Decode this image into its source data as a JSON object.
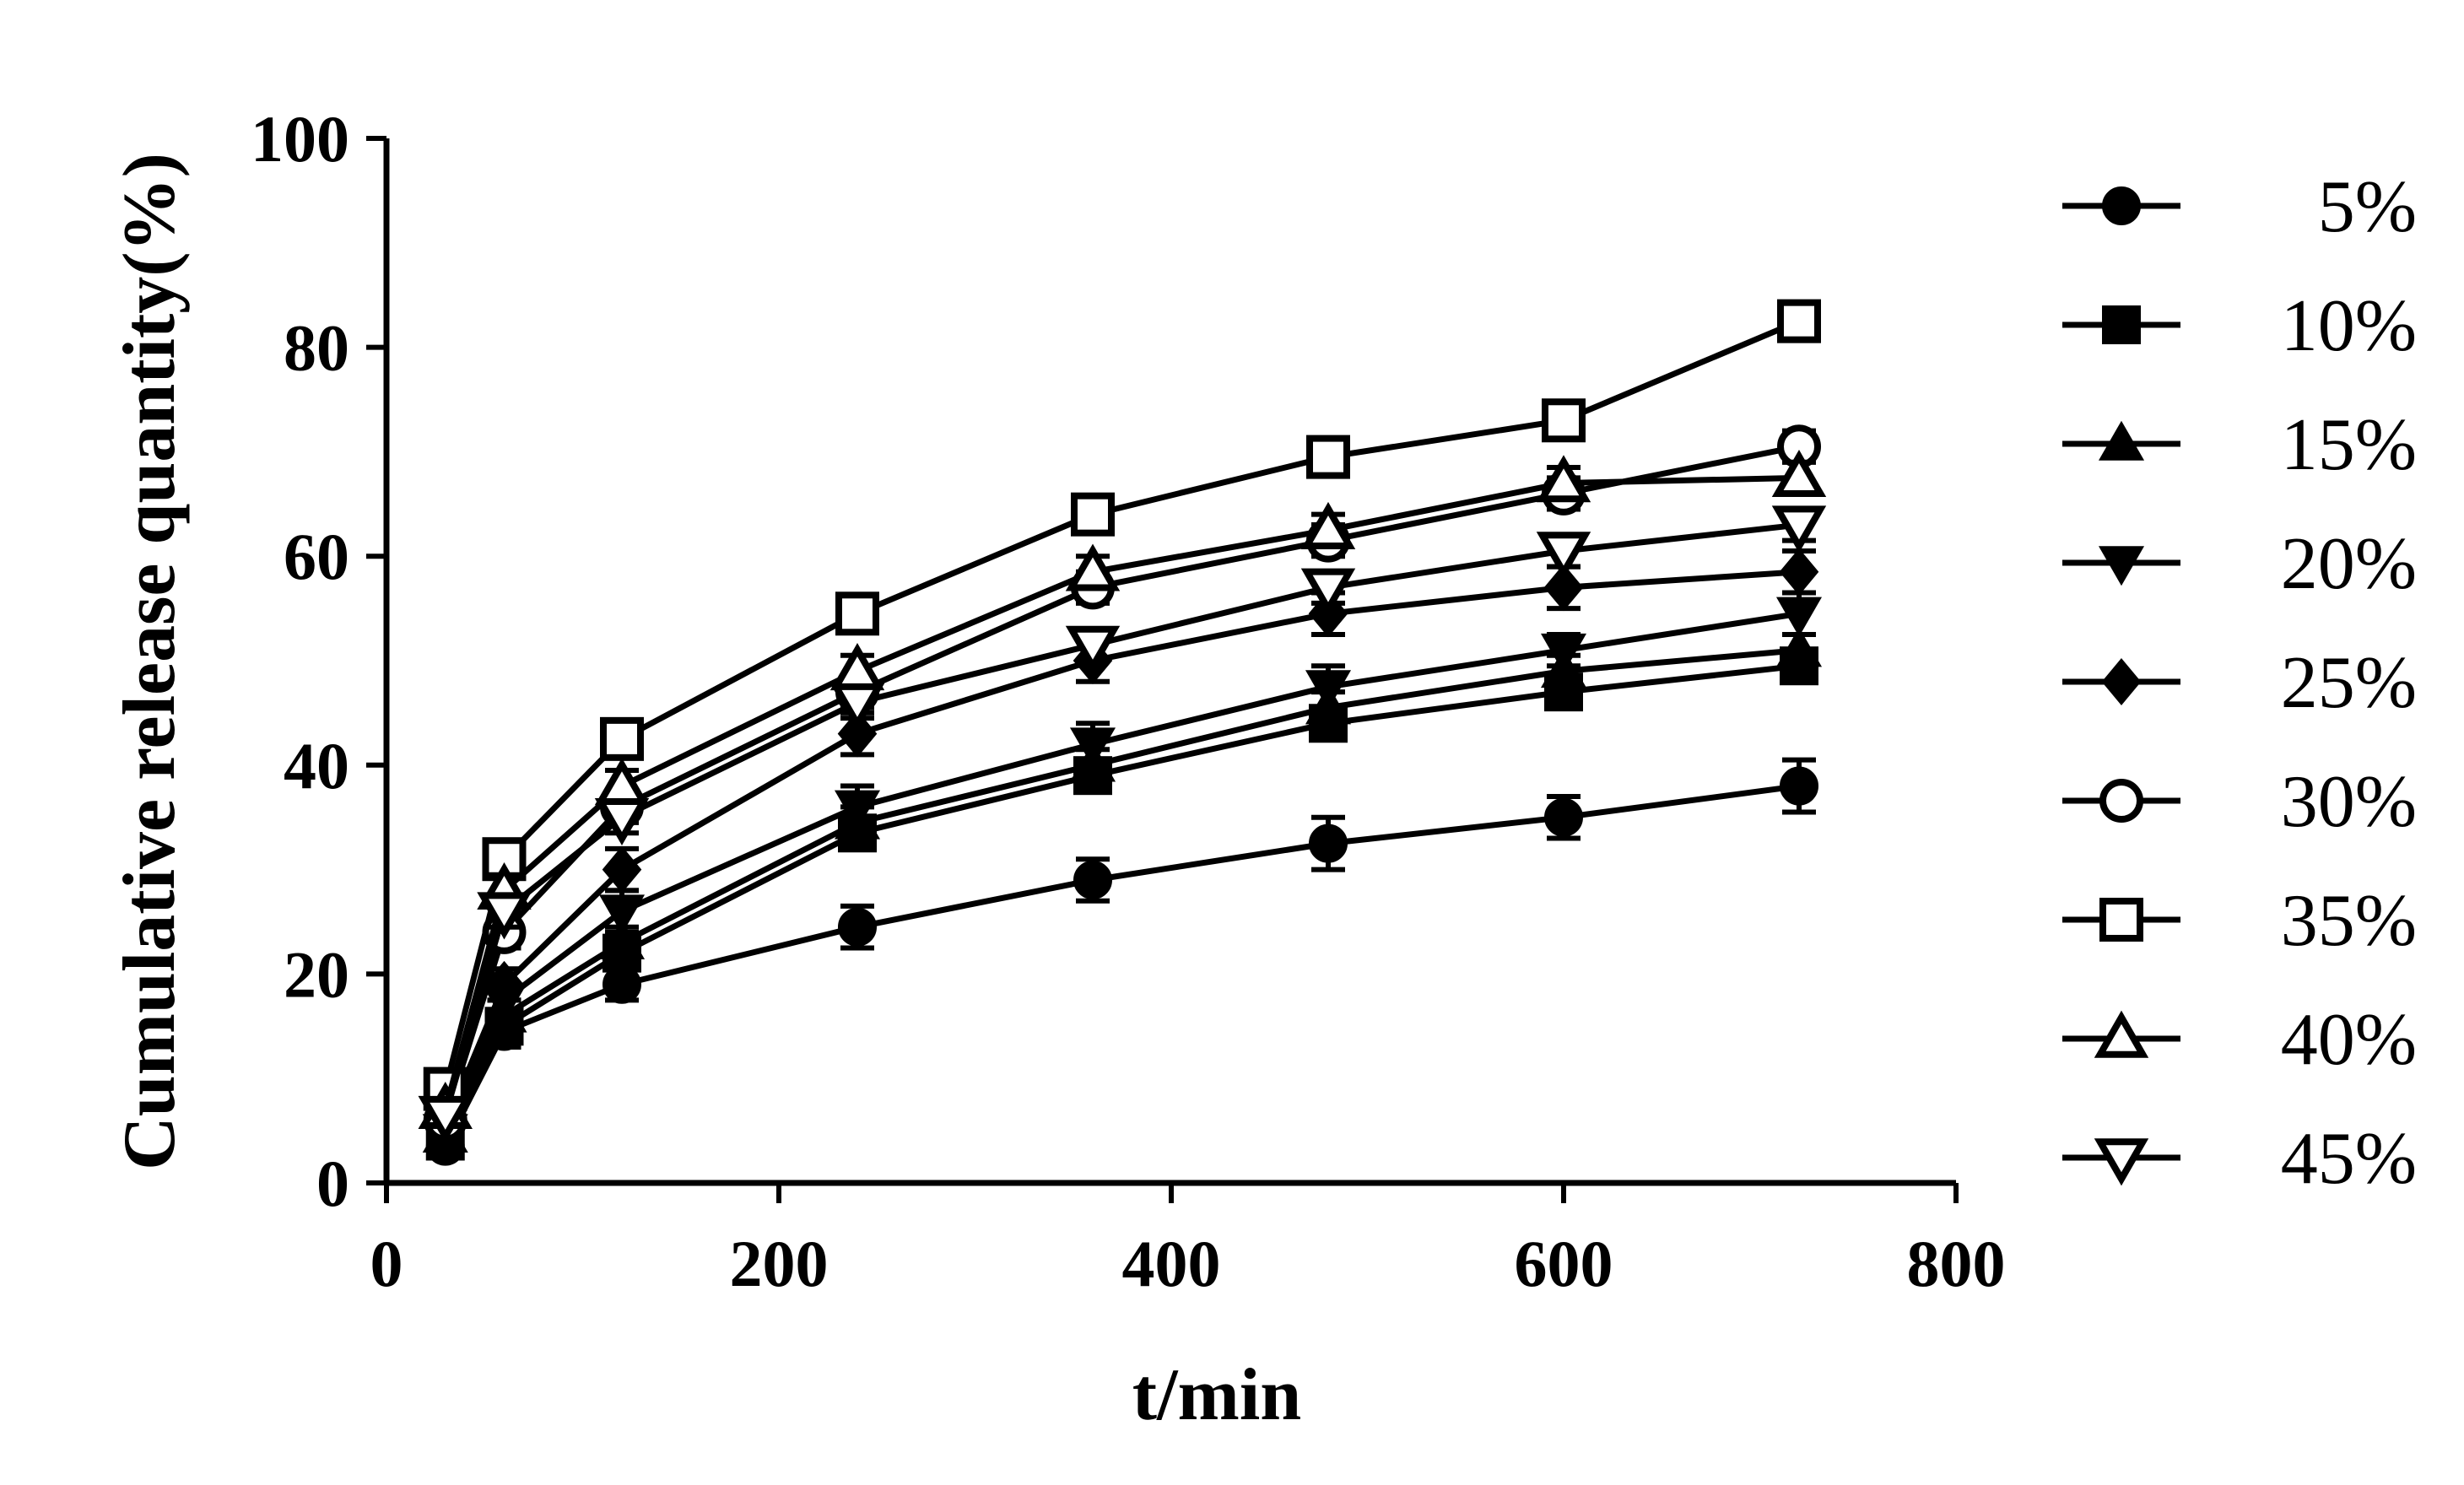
{
  "chart_data": {
    "type": "line",
    "title": "",
    "xlabel": "t/min",
    "ylabel": "Cumulative release quantity(%)",
    "xlim": [
      0,
      800
    ],
    "ylim": [
      0,
      100
    ],
    "xticks": [
      0,
      200,
      400,
      600,
      800
    ],
    "yticks": [
      0,
      20,
      40,
      60,
      80,
      100
    ],
    "grid": false,
    "legend_position": "right",
    "x": [
      30,
      60,
      120,
      240,
      360,
      480,
      600,
      720
    ],
    "series": [
      {
        "name": "5%",
        "marker": "circle-filled",
        "values": [
          3.5,
          14.5,
          19,
          24.5,
          29,
          32.5,
          35,
          38
        ],
        "errors": [
          1,
          1.5,
          1.5,
          2,
          2,
          2.5,
          2,
          2.5
        ]
      },
      {
        "name": "10%",
        "marker": "square-filled",
        "values": [
          4,
          15,
          22,
          33.5,
          39,
          44,
          47,
          49.5
        ],
        "errors": [
          1,
          1.5,
          1.5,
          1.5,
          1.5,
          1.5,
          1.5,
          1.5
        ]
      },
      {
        "name": "15%",
        "marker": "triangle-up-filled",
        "values": [
          4.5,
          16,
          23,
          34.5,
          40,
          45.5,
          49,
          51
        ],
        "errors": [
          1,
          1.5,
          1.5,
          1.5,
          1.5,
          1.5,
          1.5,
          1.5
        ]
      },
      {
        "name": "20%",
        "marker": "triangle-down-filled",
        "values": [
          5,
          17.5,
          26,
          36,
          42,
          47.5,
          51,
          54.5
        ],
        "errors": [
          1,
          1.5,
          2,
          2,
          2,
          2,
          1.5,
          2
        ]
      },
      {
        "name": "25%",
        "marker": "diamond-filled",
        "values": [
          5.5,
          19,
          30,
          43,
          50,
          54.5,
          57,
          58.5
        ],
        "errors": [
          1,
          1.5,
          2,
          2,
          2,
          2,
          2,
          2
        ]
      },
      {
        "name": "30%",
        "marker": "circle-open",
        "values": [
          6,
          24,
          36,
          47,
          57,
          61.5,
          66,
          70.5
        ],
        "errors": [
          1,
          1.5,
          1.5,
          1.5,
          1.5,
          1.5,
          1.5,
          1.5
        ]
      },
      {
        "name": "35%",
        "marker": "square-open",
        "values": [
          9,
          31,
          42.5,
          54.5,
          64,
          69.5,
          73,
          82.5
        ],
        "errors": [
          1,
          1,
          1,
          1,
          1,
          1,
          1,
          1
        ]
      },
      {
        "name": "40%",
        "marker": "triangle-up-open",
        "values": [
          7,
          28,
          38,
          49,
          58.5,
          62.5,
          67,
          67.5
        ],
        "errors": [
          1,
          1.5,
          1.5,
          1.5,
          1.5,
          1.5,
          1.5,
          1.5
        ]
      },
      {
        "name": "45%",
        "marker": "triangle-down-open",
        "values": [
          6.5,
          26,
          35,
          46,
          51.5,
          57,
          60.5,
          63
        ],
        "errors": [
          1,
          1.5,
          1.5,
          1.5,
          1.5,
          1.5,
          1.5,
          1.5
        ]
      }
    ]
  }
}
